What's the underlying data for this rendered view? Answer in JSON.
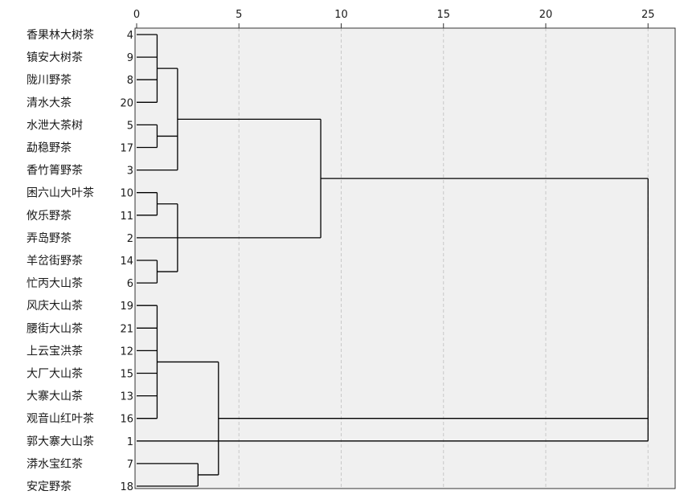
{
  "chart_data": {
    "type": "dendrogram",
    "title": "",
    "xlabel": "",
    "ylabel": "",
    "xlim": [
      0,
      26
    ],
    "x_ticks": [
      "0",
      "5",
      "10",
      "15",
      "20",
      "25"
    ],
    "grid": "vertical-dashed",
    "leaves": [
      {
        "name": "香果林大树茶",
        "id": "4"
      },
      {
        "name": "镇安大树茶",
        "id": "9"
      },
      {
        "name": "陇川野茶",
        "id": "8"
      },
      {
        "name": "清水大茶",
        "id": "20"
      },
      {
        "name": "水泄大茶树",
        "id": "5"
      },
      {
        "name": "勐稳野茶",
        "id": "17"
      },
      {
        "name": "香竹箐野茶",
        "id": "3"
      },
      {
        "name": "困六山大叶茶",
        "id": "10"
      },
      {
        "name": "攸乐野茶",
        "id": "11"
      },
      {
        "name": "弄岛野茶",
        "id": "2"
      },
      {
        "name": "羊岔街野茶",
        "id": "14"
      },
      {
        "name": "忙丙大山茶",
        "id": "6"
      },
      {
        "name": "风庆大山茶",
        "id": "19"
      },
      {
        "name": "腰街大山茶",
        "id": "21"
      },
      {
        "name": "上云宝洪茶",
        "id": "12"
      },
      {
        "name": "大厂大山茶",
        "id": "15"
      },
      {
        "name": "大寨大山茶",
        "id": "13"
      },
      {
        "name": "观音山红叶茶",
        "id": "16"
      },
      {
        "name": "郭大寨大山茶",
        "id": "1"
      },
      {
        "name": "漭水宝红茶",
        "id": "7"
      },
      {
        "name": "安定野茶",
        "id": "18"
      }
    ],
    "merges": [
      {
        "children": [
          "L0",
          "L1",
          "L2",
          "L3"
        ],
        "height": 1
      },
      {
        "children": [
          "L4",
          "L5"
        ],
        "height": 1
      },
      {
        "children": [
          "N0",
          "N1",
          "L6"
        ],
        "height": 2
      },
      {
        "children": [
          "L7",
          "L8"
        ],
        "height": 1
      },
      {
        "children": [
          "L10",
          "L11"
        ],
        "height": 1
      },
      {
        "children": [
          "N3",
          "L9",
          "N4"
        ],
        "height": 2
      },
      {
        "children": [
          "N2",
          "N5"
        ],
        "height": 9
      },
      {
        "children": [
          "L12",
          "L13",
          "L14",
          "L15",
          "L16",
          "L17"
        ],
        "height": 1
      },
      {
        "children": [
          "L19",
          "L20"
        ],
        "height": 3
      },
      {
        "children": [
          "N7",
          "N8"
        ],
        "height": 4
      },
      {
        "children": [
          "N6",
          "N9",
          "L18"
        ],
        "height": 25
      }
    ]
  }
}
